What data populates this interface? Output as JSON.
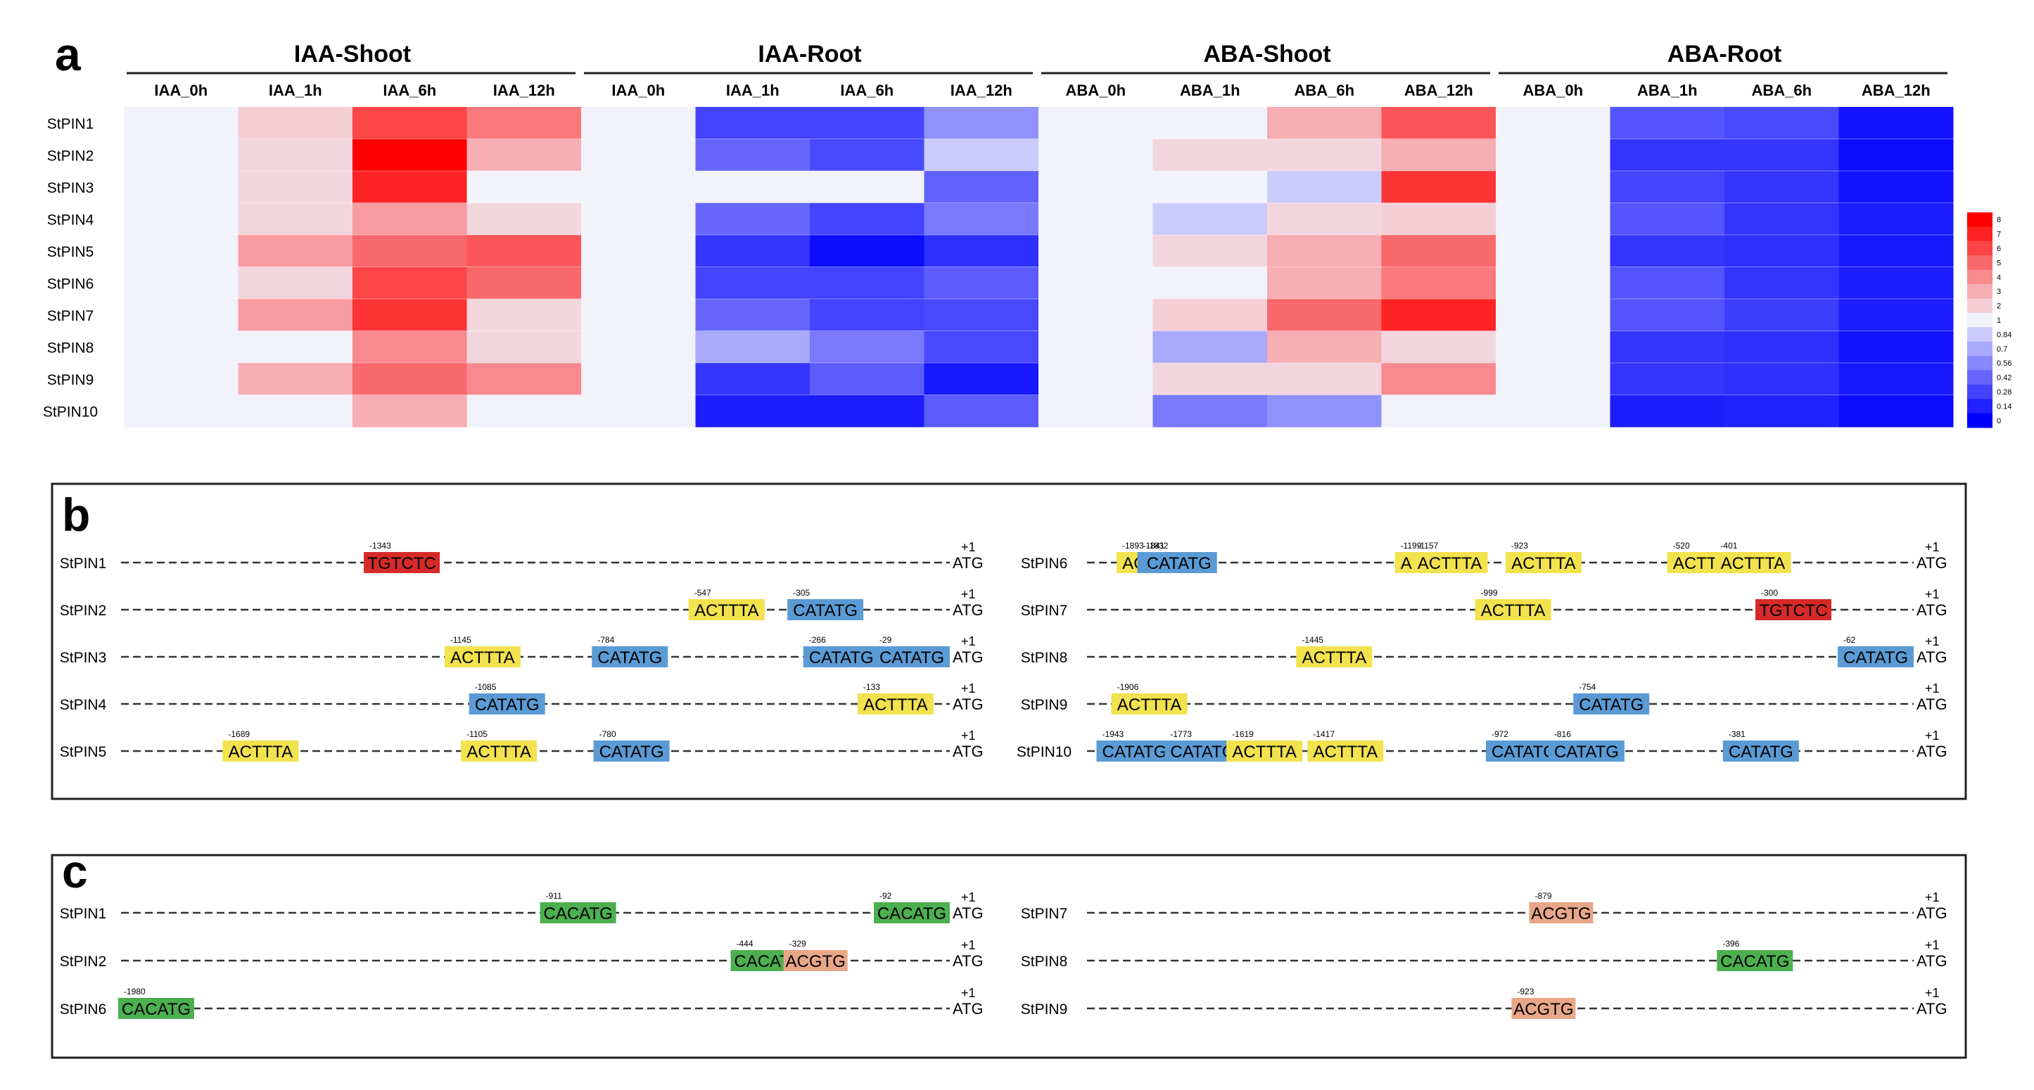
{
  "panels": {
    "a": "a",
    "b": "b",
    "c": "c"
  },
  "heatmap": {
    "groups": [
      "IAA-Shoot",
      "IAA-Root",
      "ABA-Shoot",
      "ABA-Root"
    ],
    "columns": [
      "IAA_0h",
      "IAA_1h",
      "IAA_6h",
      "IAA_12h",
      "IAA_0h",
      "IAA_1h",
      "IAA_6h",
      "IAA_12h",
      "ABA_0h",
      "ABA_1h",
      "ABA_6h",
      "ABA_12h",
      "ABA_0h",
      "ABA_1h",
      "ABA_6h",
      "ABA_12h"
    ],
    "rows": [
      "StPIN1",
      "StPIN2",
      "StPIN3",
      "StPIN4",
      "StPIN5",
      "StPIN6",
      "StPIN7",
      "StPIN8",
      "StPIN9",
      "StPIN10"
    ],
    "values": [
      [
        1,
        2,
        6,
        4.5,
        1,
        0.28,
        0.28,
        0.6,
        1,
        1,
        3,
        5.5,
        1,
        0.35,
        0.3,
        0.08
      ],
      [
        1,
        1.8,
        8,
        3,
        1,
        0.42,
        0.3,
        0.84,
        1,
        1.8,
        1.8,
        3,
        1,
        0.22,
        0.22,
        0.05
      ],
      [
        1,
        1.8,
        7,
        1,
        1,
        1,
        1,
        0.4,
        1,
        1,
        0.84,
        6.5,
        1,
        0.28,
        0.22,
        0.08
      ],
      [
        1,
        1.8,
        3.5,
        1.8,
        1,
        0.42,
        0.28,
        0.5,
        1,
        0.84,
        1.8,
        2,
        1,
        0.35,
        0.22,
        0.12
      ],
      [
        1,
        3.5,
        5,
        5.5,
        1,
        0.22,
        0.05,
        0.2,
        1,
        1.8,
        3,
        5,
        1,
        0.22,
        0.2,
        0.1
      ],
      [
        1,
        1.8,
        6,
        5,
        1,
        0.28,
        0.28,
        0.38,
        1,
        1,
        3,
        4.5,
        1,
        0.35,
        0.22,
        0.12
      ],
      [
        1,
        3.5,
        6.5,
        1.8,
        1,
        0.42,
        0.28,
        0.3,
        1,
        2,
        5,
        7,
        1,
        0.35,
        0.25,
        0.12
      ],
      [
        1,
        1,
        4,
        1.8,
        1,
        0.7,
        0.5,
        0.3,
        1,
        0.7,
        3,
        1.8,
        1,
        0.22,
        0.2,
        0.08
      ],
      [
        1,
        3,
        5,
        4,
        1,
        0.22,
        0.38,
        0.1,
        1,
        1.8,
        1.8,
        4,
        1,
        0.22,
        0.2,
        0.1
      ],
      [
        1,
        1,
        3,
        1,
        1,
        0.12,
        0.12,
        0.38,
        1,
        0.5,
        0.6,
        1,
        1,
        0.12,
        0.14,
        0.05
      ]
    ],
    "legend_labels": [
      "8",
      "7",
      "6",
      "5",
      "4",
      "3",
      "2",
      "1",
      "0.84",
      "0.7",
      "0.56",
      "0.42",
      "0.28",
      "0.14",
      "0"
    ],
    "colors": {
      "low": "#0000ff",
      "mid": "#f2f2fa",
      "high": "#ff0000"
    }
  },
  "motif_b": {
    "colors": {
      "ACTTTA": "#f2e24e",
      "CATATG": "#5b9bd5",
      "TGTCTC": "#d62a2a"
    },
    "end_plus": "+1",
    "end_atg": "ATG",
    "left": [
      {
        "gene": "StPIN1",
        "motifs": [
          {
            "pos": "-1343",
            "seq": "TGTCTC"
          }
        ]
      },
      {
        "gene": "StPIN2",
        "motifs": [
          {
            "pos": "-547",
            "seq": "ACTTTA"
          },
          {
            "pos": "-305",
            "seq": "CATATG"
          }
        ]
      },
      {
        "gene": "StPIN3",
        "motifs": [
          {
            "pos": "-1145",
            "seq": "ACTTTA"
          },
          {
            "pos": "-784",
            "seq": "CATATG"
          },
          {
            "pos": "-266",
            "seq": "CATATG"
          },
          {
            "pos": "-29",
            "seq": "CATATG"
          }
        ]
      },
      {
        "gene": "StPIN4",
        "motifs": [
          {
            "pos": "-1085",
            "seq": "CATATG"
          },
          {
            "pos": "-133",
            "seq": "ACTTTA"
          }
        ]
      },
      {
        "gene": "StPIN5",
        "motifs": [
          {
            "pos": "-1689",
            "seq": "ACTTTA"
          },
          {
            "pos": "-1105",
            "seq": "ACTTTA"
          },
          {
            "pos": "-780",
            "seq": "CATATG"
          }
        ]
      }
    ],
    "right": [
      {
        "gene": "StPIN6",
        "motifs": [
          {
            "pos": "-1893",
            "seq": "ACTTTA"
          },
          {
            "pos": "-1841",
            "seq": "CATATG"
          },
          {
            "pos": "-1832",
            "seq": "CATATG"
          },
          {
            "pos": "-1199",
            "seq": "ACTTTA"
          },
          {
            "pos": "-1157",
            "seq": "ACTTTA"
          },
          {
            "pos": "-923",
            "seq": "ACTTTA"
          },
          {
            "pos": "-520",
            "seq": "ACTTTA"
          },
          {
            "pos": "-401",
            "seq": "ACTTTA"
          }
        ]
      },
      {
        "gene": "StPIN7",
        "motifs": [
          {
            "pos": "-999",
            "seq": "ACTTTA"
          },
          {
            "pos": "-300",
            "seq": "TGTCTC"
          }
        ]
      },
      {
        "gene": "StPIN8",
        "motifs": [
          {
            "pos": "-1445",
            "seq": "ACTTTA"
          },
          {
            "pos": "-62",
            "seq": "CATATG"
          }
        ]
      },
      {
        "gene": "StPIN9",
        "motifs": [
          {
            "pos": "-1906",
            "seq": "ACTTTA"
          },
          {
            "pos": "-754",
            "seq": "CATATG"
          }
        ]
      },
      {
        "gene": "StPIN10",
        "motifs": [
          {
            "pos": "-1943",
            "seq": "CATATG"
          },
          {
            "pos": "-1773",
            "seq": "CATATG"
          },
          {
            "pos": "-1619",
            "seq": "ACTTTA"
          },
          {
            "pos": "-1417",
            "seq": "ACTTTA"
          },
          {
            "pos": "-972",
            "seq": "CATATG"
          },
          {
            "pos": "-816",
            "seq": "CATATG"
          },
          {
            "pos": "-381",
            "seq": "CATATG"
          }
        ]
      }
    ]
  },
  "motif_c": {
    "colors": {
      "CACATG": "#4caf50",
      "ACGTG": "#e8a688"
    },
    "end_plus": "+1",
    "end_atg": "ATG",
    "left": [
      {
        "gene": "StPIN1",
        "motifs": [
          {
            "pos": "-911",
            "seq": "CACATG"
          },
          {
            "pos": "-92",
            "seq": "CACATG"
          }
        ]
      },
      {
        "gene": "StPIN2",
        "motifs": [
          {
            "pos": "-444",
            "seq": "CACATG"
          },
          {
            "pos": "-329",
            "seq": "ACGTG"
          }
        ]
      },
      {
        "gene": "StPIN6",
        "motifs": [
          {
            "pos": "-1980",
            "seq": "CACATG"
          }
        ]
      }
    ],
    "right": [
      {
        "gene": "StPIN7",
        "motifs": [
          {
            "pos": "-879",
            "seq": "ACGTG"
          }
        ]
      },
      {
        "gene": "StPIN8",
        "motifs": [
          {
            "pos": "-396",
            "seq": "CACATG"
          }
        ]
      },
      {
        "gene": "StPIN9",
        "motifs": [
          {
            "pos": "-923",
            "seq": "ACGTG"
          }
        ]
      }
    ]
  }
}
